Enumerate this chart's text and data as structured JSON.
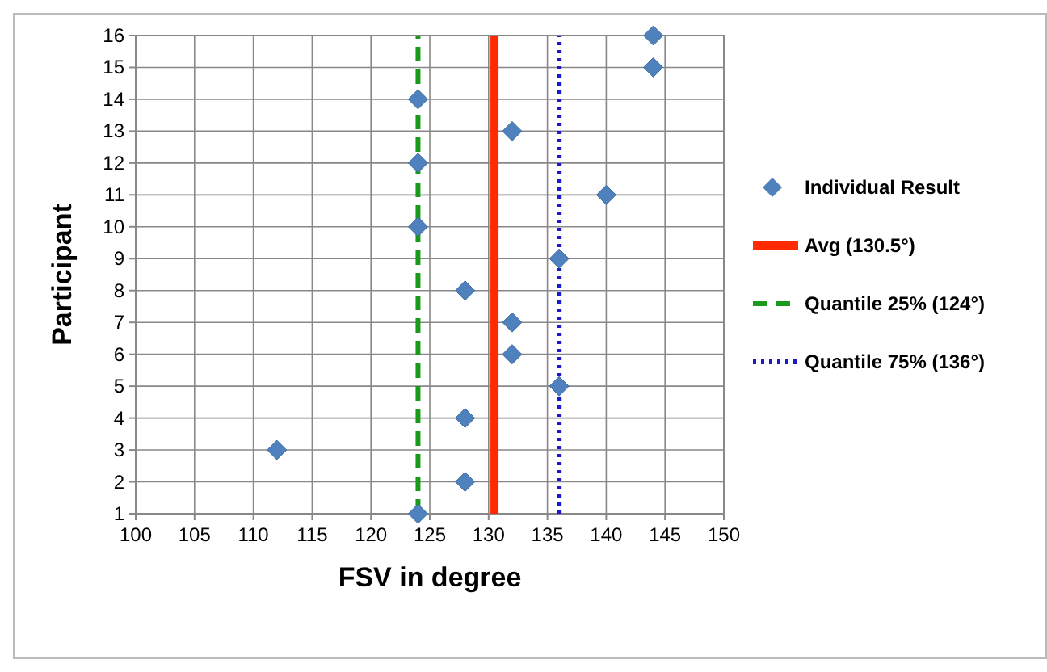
{
  "chart_data": {
    "type": "scatter",
    "xlabel": "FSV in degree",
    "ylabel": "Participant",
    "x": [
      124,
      128,
      112,
      128,
      136,
      132,
      132,
      128,
      136,
      124,
      140,
      124,
      132,
      124,
      144,
      144
    ],
    "series": [
      {
        "name": "Individual Result",
        "color": "#4f81bd",
        "marker": "diamond",
        "values": [
          1,
          2,
          3,
          4,
          5,
          6,
          7,
          8,
          9,
          10,
          11,
          12,
          13,
          14,
          15,
          16
        ]
      },
      {
        "name": "Avg (130.5°)",
        "type": "line",
        "color": "#ff2a00",
        "line_style": "solid",
        "x": [
          130.5,
          130.5
        ],
        "values": [
          1,
          16
        ]
      },
      {
        "name": "Quantile 25% (124°)",
        "type": "line",
        "color": "#1a9a1a",
        "line_style": "dashed",
        "x": [
          124,
          124
        ],
        "values": [
          1,
          16
        ]
      },
      {
        "name": "Quantile 75% (136°)",
        "type": "line",
        "color": "#1a1acc",
        "line_style": "dotted",
        "x": [
          136,
          136
        ],
        "values": [
          1,
          16
        ]
      }
    ],
    "xlim": [
      100,
      150
    ],
    "xticks": [
      100,
      105,
      110,
      115,
      120,
      125,
      130,
      135,
      140,
      145,
      150
    ],
    "ylim": [
      1,
      16
    ],
    "yticks": [
      1,
      2,
      3,
      4,
      5,
      6,
      7,
      8,
      9,
      10,
      11,
      12,
      13,
      14,
      15,
      16
    ],
    "grid": true,
    "legend": "right"
  }
}
